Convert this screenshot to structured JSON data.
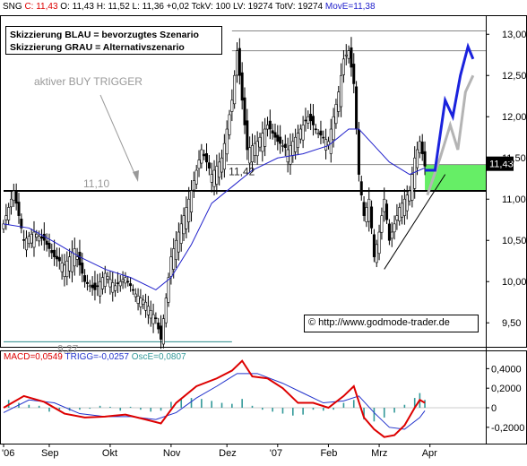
{
  "header": {
    "symbol": "SNG",
    "close_label": "C: 11,43",
    "open_label": "O: 11,43",
    "high_label": "H: 11,52",
    "low_label": "L: 11,36",
    "change_label": "+0,02",
    "tickvol_label": "TckV: 100",
    "lv_label": "LV: 19274",
    "totv_label": "TotV: 19274",
    "mov_label": "MovE=11,38"
  },
  "legend": {
    "line1": "Skizzierung BLAU = bevorzugtes Szenario",
    "line2": "Skizzierung GRAU = Alternativszenario"
  },
  "annotations": {
    "buy_trigger": "aktiver BUY TRIGGER",
    "trigger_level": "11,10",
    "high_level": "11,42",
    "low_level": "9,27",
    "last_price": "11,43",
    "copyright": "© http://www.godmode-trader.de"
  },
  "macd_header": {
    "macd": "MACD=0,0549",
    "trigg": "TRIGG=-0,0257",
    "osc": "OscE=0,0807"
  },
  "colors": {
    "candle": "#000000",
    "moving_average": "#2222cc",
    "blue_scenario": "#1a22dd",
    "grey_scenario": "#b4b4b4",
    "green_zone": "#66ee66",
    "macd_line": "#dd0000",
    "trigger_line": "#2233cc",
    "histogram": "#339999"
  },
  "chart_data": [
    {
      "type": "candlestick",
      "title": "",
      "x_tick_labels": [
        "'06",
        "Sep",
        "Okt",
        "Nov",
        "Dez",
        "'07",
        "Feb",
        "Mrz",
        "Apr"
      ],
      "y_tick_labels": [
        "9,50",
        "10,00",
        "10,50",
        "11,00",
        "11,50",
        "12,00",
        "12,50",
        "13,00"
      ],
      "ylim": [
        9.22,
        13.22
      ],
      "grid": false,
      "price_path": [
        [
          0,
          10.7
        ],
        [
          4,
          11.1
        ],
        [
          8,
          10.5
        ],
        [
          12,
          10.6
        ],
        [
          16,
          10.5
        ],
        [
          20,
          10.3
        ],
        [
          24,
          10.2
        ],
        [
          28,
          10.4
        ],
        [
          32,
          10.0
        ],
        [
          36,
          9.9
        ],
        [
          40,
          10.1
        ],
        [
          44,
          9.95
        ],
        [
          48,
          10.05
        ],
        [
          52,
          9.85
        ],
        [
          56,
          9.75
        ],
        [
          60,
          9.55
        ],
        [
          62,
          9.3
        ],
        [
          64,
          9.8
        ],
        [
          66,
          10.3
        ],
        [
          70,
          10.7
        ],
        [
          74,
          11.1
        ],
        [
          78,
          11.6
        ],
        [
          82,
          11.3
        ],
        [
          86,
          11.5
        ],
        [
          90,
          12.2
        ],
        [
          92,
          12.8
        ],
        [
          94,
          12.2
        ],
        [
          96,
          11.6
        ],
        [
          100,
          11.7
        ],
        [
          104,
          11.9
        ],
        [
          108,
          11.7
        ],
        [
          112,
          11.6
        ],
        [
          116,
          11.8
        ],
        [
          120,
          12.0
        ],
        [
          124,
          11.8
        ],
        [
          128,
          11.7
        ],
        [
          132,
          12.3
        ],
        [
          134,
          12.7
        ],
        [
          136,
          12.8
        ],
        [
          138,
          12.4
        ],
        [
          140,
          11.3
        ],
        [
          142,
          10.8
        ],
        [
          144,
          11.0
        ],
        [
          146,
          10.3
        ],
        [
          148,
          10.6
        ],
        [
          150,
          11.0
        ],
        [
          152,
          10.5
        ],
        [
          154,
          10.7
        ],
        [
          156,
          10.9
        ],
        [
          158,
          11.0
        ],
        [
          160,
          11.1
        ],
        [
          162,
          11.5
        ],
        [
          164,
          11.7
        ],
        [
          166,
          11.4
        ]
      ],
      "moving_average": [
        [
          0,
          10.7
        ],
        [
          10,
          10.65
        ],
        [
          20,
          10.48
        ],
        [
          30,
          10.3
        ],
        [
          40,
          10.15
        ],
        [
          50,
          10.05
        ],
        [
          60,
          9.9
        ],
        [
          66,
          10.05
        ],
        [
          74,
          10.45
        ],
        [
          82,
          10.95
        ],
        [
          90,
          11.15
        ],
        [
          98,
          11.35
        ],
        [
          108,
          11.5
        ],
        [
          118,
          11.55
        ],
        [
          128,
          11.65
        ],
        [
          136,
          11.85
        ],
        [
          140,
          11.85
        ],
        [
          146,
          11.65
        ],
        [
          152,
          11.45
        ],
        [
          160,
          11.3
        ],
        [
          166,
          11.38
        ]
      ],
      "horizontal_lines": [
        {
          "label": "11,10",
          "value": 11.1
        },
        {
          "label": "11.42",
          "value": 11.42
        },
        {
          "label": "9,27",
          "value": 9.27
        },
        {
          "value": 12.8
        },
        {
          "value": 13.04
        }
      ],
      "blue_scenario": [
        [
          166,
          11.35
        ],
        [
          170,
          11.35
        ],
        [
          174,
          12.2
        ],
        [
          177,
          12.0
        ],
        [
          180,
          12.5
        ],
        [
          183,
          12.85
        ],
        [
          185,
          12.7
        ]
      ],
      "grey_scenario": [
        [
          167,
          11.05
        ],
        [
          172,
          11.5
        ],
        [
          176,
          11.9
        ],
        [
          179,
          11.6
        ],
        [
          182,
          12.3
        ],
        [
          185,
          12.5
        ]
      ],
      "support_trendline": [
        [
          150,
          10.15
        ],
        [
          174,
          11.3
        ]
      ],
      "last_price": 11.43
    },
    {
      "type": "line",
      "title": "MACD",
      "y_tick_labels": [
        "0,4000",
        "0,2000",
        "0",
        "-0,2000"
      ],
      "ylim": [
        -0.33,
        0.55
      ],
      "series": [
        {
          "name": "MACD",
          "points": [
            [
              0,
              0.0
            ],
            [
              8,
              0.12
            ],
            [
              16,
              0.06
            ],
            [
              24,
              -0.06
            ],
            [
              32,
              -0.1
            ],
            [
              40,
              -0.09
            ],
            [
              48,
              -0.07
            ],
            [
              56,
              -0.12
            ],
            [
              62,
              -0.16
            ],
            [
              68,
              0.05
            ],
            [
              76,
              0.22
            ],
            [
              84,
              0.3
            ],
            [
              90,
              0.38
            ],
            [
              94,
              0.48
            ],
            [
              98,
              0.32
            ],
            [
              104,
              0.3
            ],
            [
              110,
              0.2
            ],
            [
              116,
              0.05
            ],
            [
              122,
              0.05
            ],
            [
              128,
              0.0
            ],
            [
              134,
              0.12
            ],
            [
              138,
              0.22
            ],
            [
              142,
              -0.1
            ],
            [
              146,
              -0.22
            ],
            [
              150,
              -0.3
            ],
            [
              154,
              -0.28
            ],
            [
              158,
              -0.18
            ],
            [
              162,
              0.0
            ],
            [
              164,
              0.08
            ],
            [
              166,
              0.05
            ]
          ]
        },
        {
          "name": "TRIGG",
          "points": [
            [
              0,
              -0.05
            ],
            [
              10,
              0.08
            ],
            [
              20,
              0.05
            ],
            [
              30,
              -0.06
            ],
            [
              40,
              -0.09
            ],
            [
              50,
              -0.09
            ],
            [
              60,
              -0.12
            ],
            [
              68,
              -0.05
            ],
            [
              76,
              0.1
            ],
            [
              84,
              0.22
            ],
            [
              92,
              0.35
            ],
            [
              100,
              0.35
            ],
            [
              110,
              0.25
            ],
            [
              118,
              0.15
            ],
            [
              126,
              0.05
            ],
            [
              134,
              0.07
            ],
            [
              140,
              0.12
            ],
            [
              146,
              -0.05
            ],
            [
              152,
              -0.2
            ],
            [
              158,
              -0.22
            ],
            [
              164,
              -0.1
            ],
            [
              166,
              -0.03
            ]
          ]
        },
        {
          "name": "OscE",
          "type": "bar",
          "points": [
            [
              2,
              0.08
            ],
            [
              6,
              0.05
            ],
            [
              10,
              0.03
            ],
            [
              14,
              0.02
            ],
            [
              18,
              -0.04
            ],
            [
              22,
              -0.02
            ],
            [
              26,
              -0.03
            ],
            [
              30,
              -0.02
            ],
            [
              34,
              -0.01
            ],
            [
              38,
              0.02
            ],
            [
              42,
              0.01
            ],
            [
              46,
              -0.03
            ],
            [
              50,
              0.01
            ],
            [
              54,
              -0.02
            ],
            [
              58,
              -0.04
            ],
            [
              62,
              -0.03
            ],
            [
              66,
              0.06
            ],
            [
              70,
              0.09
            ],
            [
              74,
              0.1
            ],
            [
              78,
              0.09
            ],
            [
              82,
              0.07
            ],
            [
              86,
              0.05
            ],
            [
              90,
              0.04
            ],
            [
              94,
              0.09
            ],
            [
              98,
              0.02
            ],
            [
              102,
              -0.02
            ],
            [
              106,
              -0.04
            ],
            [
              110,
              -0.06
            ],
            [
              114,
              -0.08
            ],
            [
              118,
              -0.07
            ],
            [
              122,
              -0.02
            ],
            [
              126,
              -0.03
            ],
            [
              130,
              -0.02
            ],
            [
              134,
              0.05
            ],
            [
              138,
              0.08
            ],
            [
              142,
              -0.12
            ],
            [
              146,
              -0.14
            ],
            [
              150,
              -0.1
            ],
            [
              154,
              -0.05
            ],
            [
              158,
              0.03
            ],
            [
              162,
              0.1
            ],
            [
              164,
              0.15
            ],
            [
              166,
              0.08
            ]
          ]
        }
      ]
    }
  ]
}
